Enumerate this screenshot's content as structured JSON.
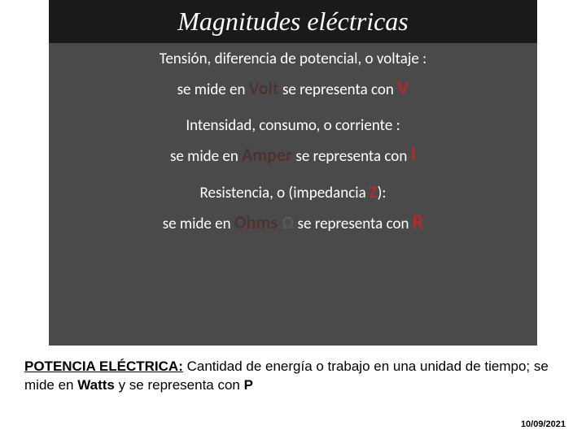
{
  "slide": {
    "title": "Magnitudes eléctricas",
    "section1": {
      "heading": "Tensión, diferencia de potencial, o voltaje :",
      "prefix": "se mide en ",
      "unit": "Volt",
      "mid": " se representa con  ",
      "symbol": "V"
    },
    "section2": {
      "heading": "Intensidad, consumo, o corriente :",
      "prefix": "se mide en ",
      "unit": "Amper",
      "mid": " se representa con  ",
      "symbol": "I"
    },
    "section3": {
      "heading_a": "Resistencia, o (impedancia ",
      "heading_z": "Z",
      "heading_b": "):",
      "prefix": "se mide en ",
      "unit": "Ohms",
      "omega": " Ω",
      "mid": " se representa con  ",
      "symbol": "R"
    }
  },
  "caption": {
    "label": "POTENCIA ELÉCTRICA:",
    "text_a": " Cantidad de energía o trabajo en una unidad de tiempo; se mide en ",
    "bold1": "Watts",
    "text_b": " y se representa con ",
    "bold2": "P"
  },
  "date": "10/09/2021",
  "colors": {
    "slide_bg": "#4a4a4a",
    "title_bg": "#1a1a1a",
    "white": "#ffffff",
    "unit_dark": "#3a3a3a",
    "symbol_red": "#b82828",
    "page_bg": "#ffffff"
  }
}
